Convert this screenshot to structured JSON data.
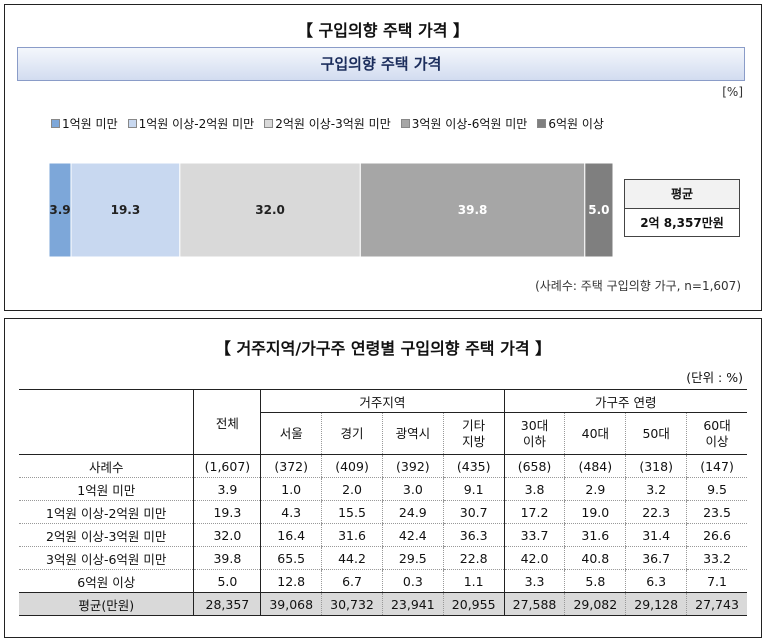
{
  "top_panel": {
    "title": "구입의향 주택 가격",
    "banner": "구입의향 주택 가격",
    "unit": "[%]",
    "average_label": "평균",
    "average_value": "2억 8,357만원",
    "source": "(사례수: 주택 구입의향 가구, n=1,607)"
  },
  "chart_data": {
    "type": "bar",
    "orientation": "horizontal-stacked",
    "series": [
      {
        "name": "1억원 미만",
        "value": 3.9,
        "color": "#7da7d9"
      },
      {
        "name": "1억원 이상-2억원 미만",
        "value": 19.3,
        "color": "#c8d8f0"
      },
      {
        "name": "2억원 이상-3억원 미만",
        "value": 32.0,
        "color": "#d9d9d9"
      },
      {
        "name": "3억원 이상-6억원 미만",
        "value": 39.8,
        "color": "#a6a6a6"
      },
      {
        "name": "6억원 이상",
        "value": 5.0,
        "color": "#7f7f7f"
      }
    ]
  },
  "bottom_panel": {
    "title": "거주지역/가구주 연령별 구입의향 주택 가격",
    "unit": "(단위 : %)",
    "group_region": "거주지역",
    "group_age": "가구주 연령",
    "col_total": "전체",
    "columns": [
      "서울",
      "경기",
      "광역시",
      "기타 지방",
      "30대 이하",
      "40대",
      "50대",
      "60대 이상"
    ],
    "rows": [
      {
        "label": "사례수",
        "values": [
          "(1,607)",
          "(372)",
          "(409)",
          "(392)",
          "(435)",
          "(658)",
          "(484)",
          "(318)",
          "(147)"
        ]
      },
      {
        "label": "1억원 미만",
        "values": [
          "3.9",
          "1.0",
          "2.0",
          "3.0",
          "9.1",
          "3.8",
          "2.9",
          "3.2",
          "9.5"
        ]
      },
      {
        "label": "1억원 이상-2억원 미만",
        "values": [
          "19.3",
          "4.3",
          "15.5",
          "24.9",
          "30.7",
          "17.2",
          "19.0",
          "22.3",
          "23.5"
        ]
      },
      {
        "label": "2억원 이상-3억원 미만",
        "values": [
          "32.0",
          "16.4",
          "31.6",
          "42.4",
          "36.3",
          "33.7",
          "31.6",
          "31.4",
          "26.6"
        ]
      },
      {
        "label": "3억원 이상-6억원 미만",
        "values": [
          "39.8",
          "65.5",
          "44.2",
          "29.5",
          "22.8",
          "42.0",
          "40.8",
          "36.7",
          "33.2"
        ]
      },
      {
        "label": "6억원 이상",
        "values": [
          "5.0",
          "12.8",
          "6.7",
          "0.3",
          "1.1",
          "3.3",
          "5.8",
          "6.3",
          "7.1"
        ]
      },
      {
        "label": "평균(만원)",
        "values": [
          "28,357",
          "39,068",
          "30,732",
          "23,941",
          "20,955",
          "27,588",
          "29,082",
          "29,128",
          "27,743"
        ]
      }
    ]
  }
}
